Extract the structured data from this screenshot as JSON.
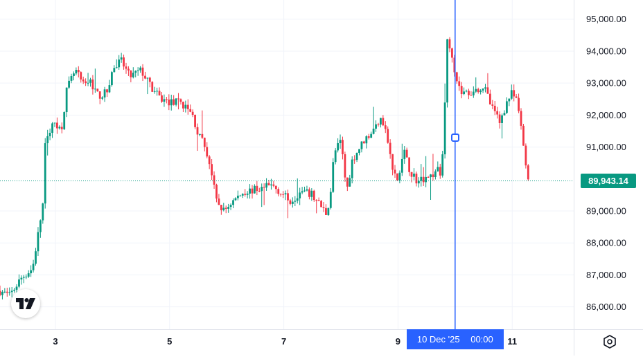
{
  "chart_data": {
    "type": "candlestick",
    "x_ticks": [
      {
        "label": "3",
        "day": 3
      },
      {
        "label": "5",
        "day": 5
      },
      {
        "label": "7",
        "day": 7
      },
      {
        "label": "9",
        "day": 9
      },
      {
        "label": "11",
        "day": 11
      }
    ],
    "y_ticks": [
      "95,000.00",
      "94,000.00",
      "93,000.00",
      "92,000.00",
      "91,000.00",
      "89,000.00",
      "88,000.00",
      "87,000.00",
      "86,000.00"
    ],
    "y_tick_values": [
      95000,
      94000,
      93000,
      92000,
      91000,
      89000,
      88000,
      87000,
      86000
    ],
    "ylim": [
      85300,
      95600
    ],
    "xlim_days": [
      2.03,
      11.98
    ],
    "last_price": 89943.14,
    "last_price_label": "89,943.14",
    "crosshair": {
      "date": "10 Dec '25",
      "time": "00:00",
      "day": 10.0
    },
    "anchors": [
      [
        2.03,
        86500
      ],
      [
        2.2,
        86350
      ],
      [
        2.4,
        86900
      ],
      [
        2.6,
        87200
      ],
      [
        2.7,
        88300
      ],
      [
        2.78,
        89200
      ],
      [
        2.82,
        91000
      ],
      [
        2.9,
        91500
      ],
      [
        3.0,
        91800
      ],
      [
        3.1,
        91500
      ],
      [
        3.2,
        92800
      ],
      [
        3.35,
        93400
      ],
      [
        3.5,
        92900
      ],
      [
        3.6,
        93100
      ],
      [
        3.75,
        92600
      ],
      [
        3.9,
        92700
      ],
      [
        4.0,
        93400
      ],
      [
        4.15,
        93700
      ],
      [
        4.3,
        93200
      ],
      [
        4.5,
        93400
      ],
      [
        4.7,
        92800
      ],
      [
        4.85,
        92500
      ],
      [
        5.0,
        92400
      ],
      [
        5.2,
        92400
      ],
      [
        5.4,
        92000
      ],
      [
        5.5,
        91400
      ],
      [
        5.6,
        91100
      ],
      [
        5.7,
        90500
      ],
      [
        5.82,
        89300
      ],
      [
        5.95,
        89000
      ],
      [
        6.1,
        89300
      ],
      [
        6.3,
        89600
      ],
      [
        6.6,
        89700
      ],
      [
        6.8,
        89800
      ],
      [
        7.0,
        89500
      ],
      [
        7.1,
        89300
      ],
      [
        7.3,
        89600
      ],
      [
        7.5,
        89500
      ],
      [
        7.65,
        89150
      ],
      [
        7.75,
        88900
      ],
      [
        7.82,
        89600
      ],
      [
        7.88,
        90800
      ],
      [
        8.0,
        91200
      ],
      [
        8.1,
        89600
      ],
      [
        8.2,
        90600
      ],
      [
        8.4,
        91200
      ],
      [
        8.6,
        91600
      ],
      [
        8.7,
        92000
      ],
      [
        8.8,
        91400
      ],
      [
        8.9,
        90300
      ],
      [
        9.0,
        89900
      ],
      [
        9.1,
        90900
      ],
      [
        9.2,
        90300
      ],
      [
        9.35,
        89900
      ],
      [
        9.5,
        90100
      ],
      [
        9.6,
        90100
      ],
      [
        9.7,
        90300
      ],
      [
        9.76,
        90000
      ],
      [
        9.82,
        92400
      ],
      [
        9.86,
        94300
      ],
      [
        9.95,
        93900
      ],
      [
        10.0,
        93300
      ],
      [
        10.1,
        92700
      ],
      [
        10.25,
        92700
      ],
      [
        10.5,
        92900
      ],
      [
        10.65,
        92200
      ],
      [
        10.8,
        91800
      ],
      [
        10.9,
        92400
      ],
      [
        11.0,
        92700
      ],
      [
        11.1,
        92300
      ],
      [
        11.2,
        91000
      ],
      [
        11.25,
        90300
      ],
      [
        11.3,
        89943
      ]
    ]
  }
}
